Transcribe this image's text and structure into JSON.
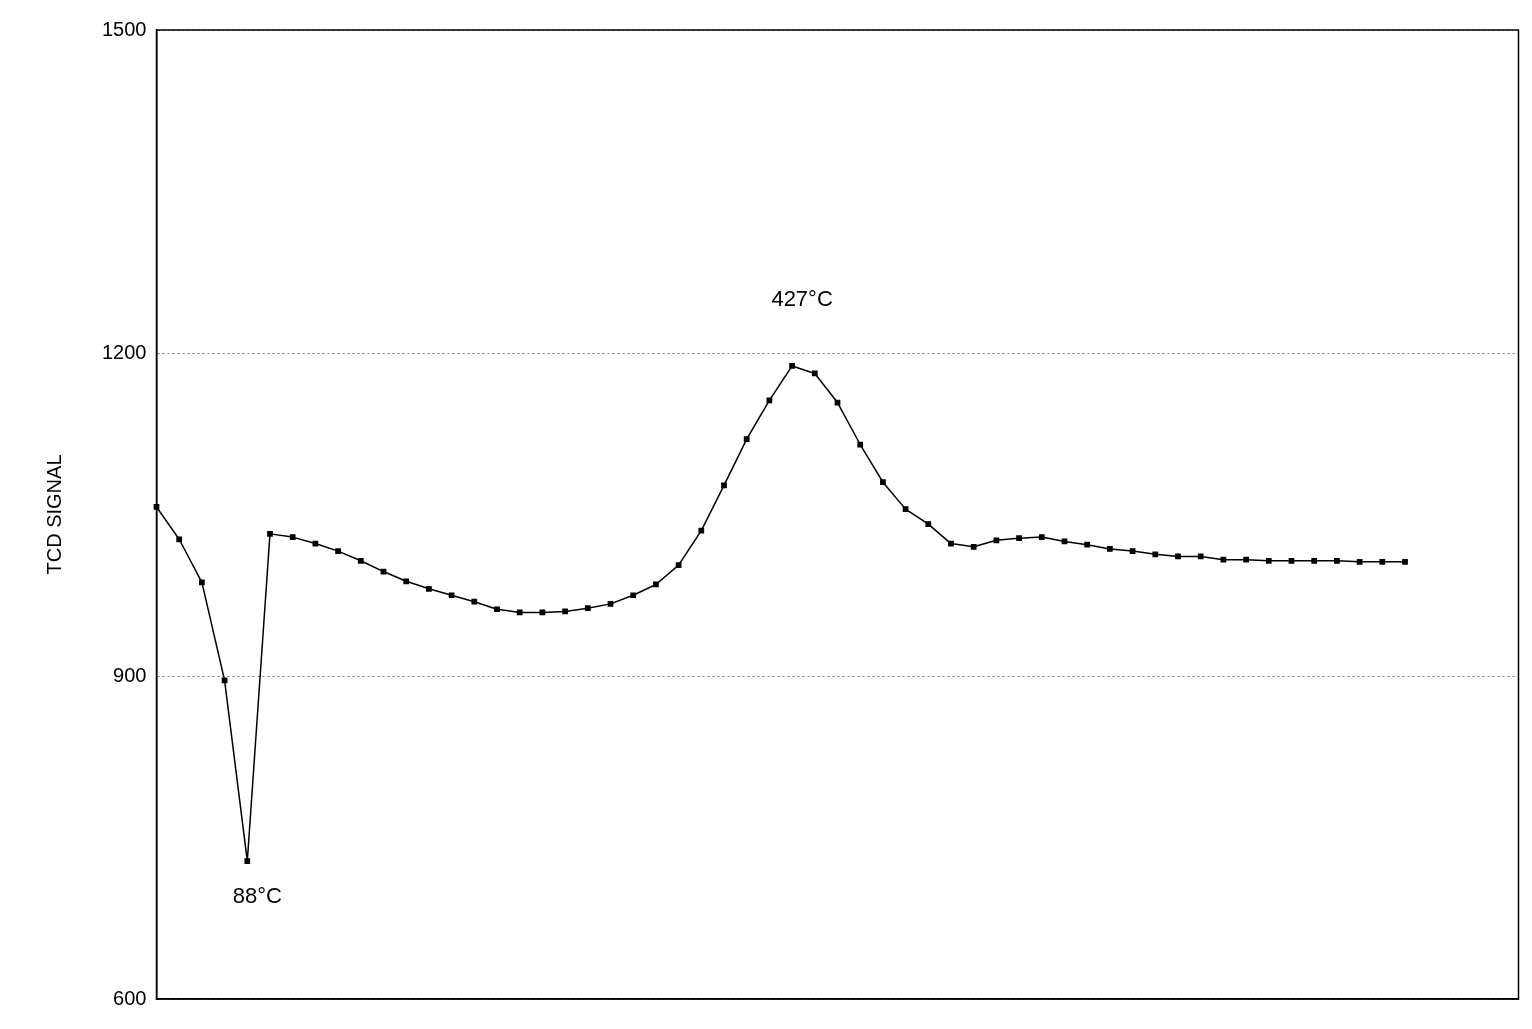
{
  "chart_data": {
    "type": "line",
    "ylabel": "TCD SIGNAL",
    "categories": [
      null,
      null,
      null,
      null,
      null,
      null,
      null,
      null,
      null,
      null,
      null,
      null,
      null,
      null,
      null,
      null,
      null,
      null,
      null,
      null,
      null,
      null,
      null,
      null,
      null,
      null,
      null,
      null,
      null,
      null,
      null,
      null,
      null,
      null,
      null,
      null,
      null,
      null,
      null,
      null,
      null,
      null,
      null,
      null,
      null,
      null,
      null,
      null,
      null,
      null,
      null,
      null,
      null,
      null,
      null,
      null,
      null,
      null,
      null,
      null,
      null
    ],
    "series": [
      {
        "color": "#000000",
        "values": [
          1057,
          1027,
          987,
          896,
          728,
          1032,
          1029,
          1023,
          1016,
          1007,
          997,
          988,
          981,
          975,
          969,
          962,
          959,
          959,
          960,
          963,
          967,
          975,
          985,
          1003,
          1035,
          1077,
          1120,
          1156,
          1188,
          1181,
          1154,
          1115,
          1080,
          1055,
          1041,
          1023,
          1020,
          1026,
          1028,
          1029,
          1025,
          1022,
          1018,
          1016,
          1013,
          1011,
          1011,
          1008,
          1008,
          1007,
          1007,
          1007,
          1007,
          1006,
          1006,
          1006,
          null,
          null,
          null,
          null,
          null
        ]
      }
    ],
    "ylim": [
      600,
      1500
    ],
    "yticks": [
      600,
      900,
      1200,
      1500
    ],
    "grid": "y",
    "marker": "square",
    "line_style": "solid",
    "legend": false,
    "annotations": [
      "88°C",
      "427°C"
    ]
  }
}
